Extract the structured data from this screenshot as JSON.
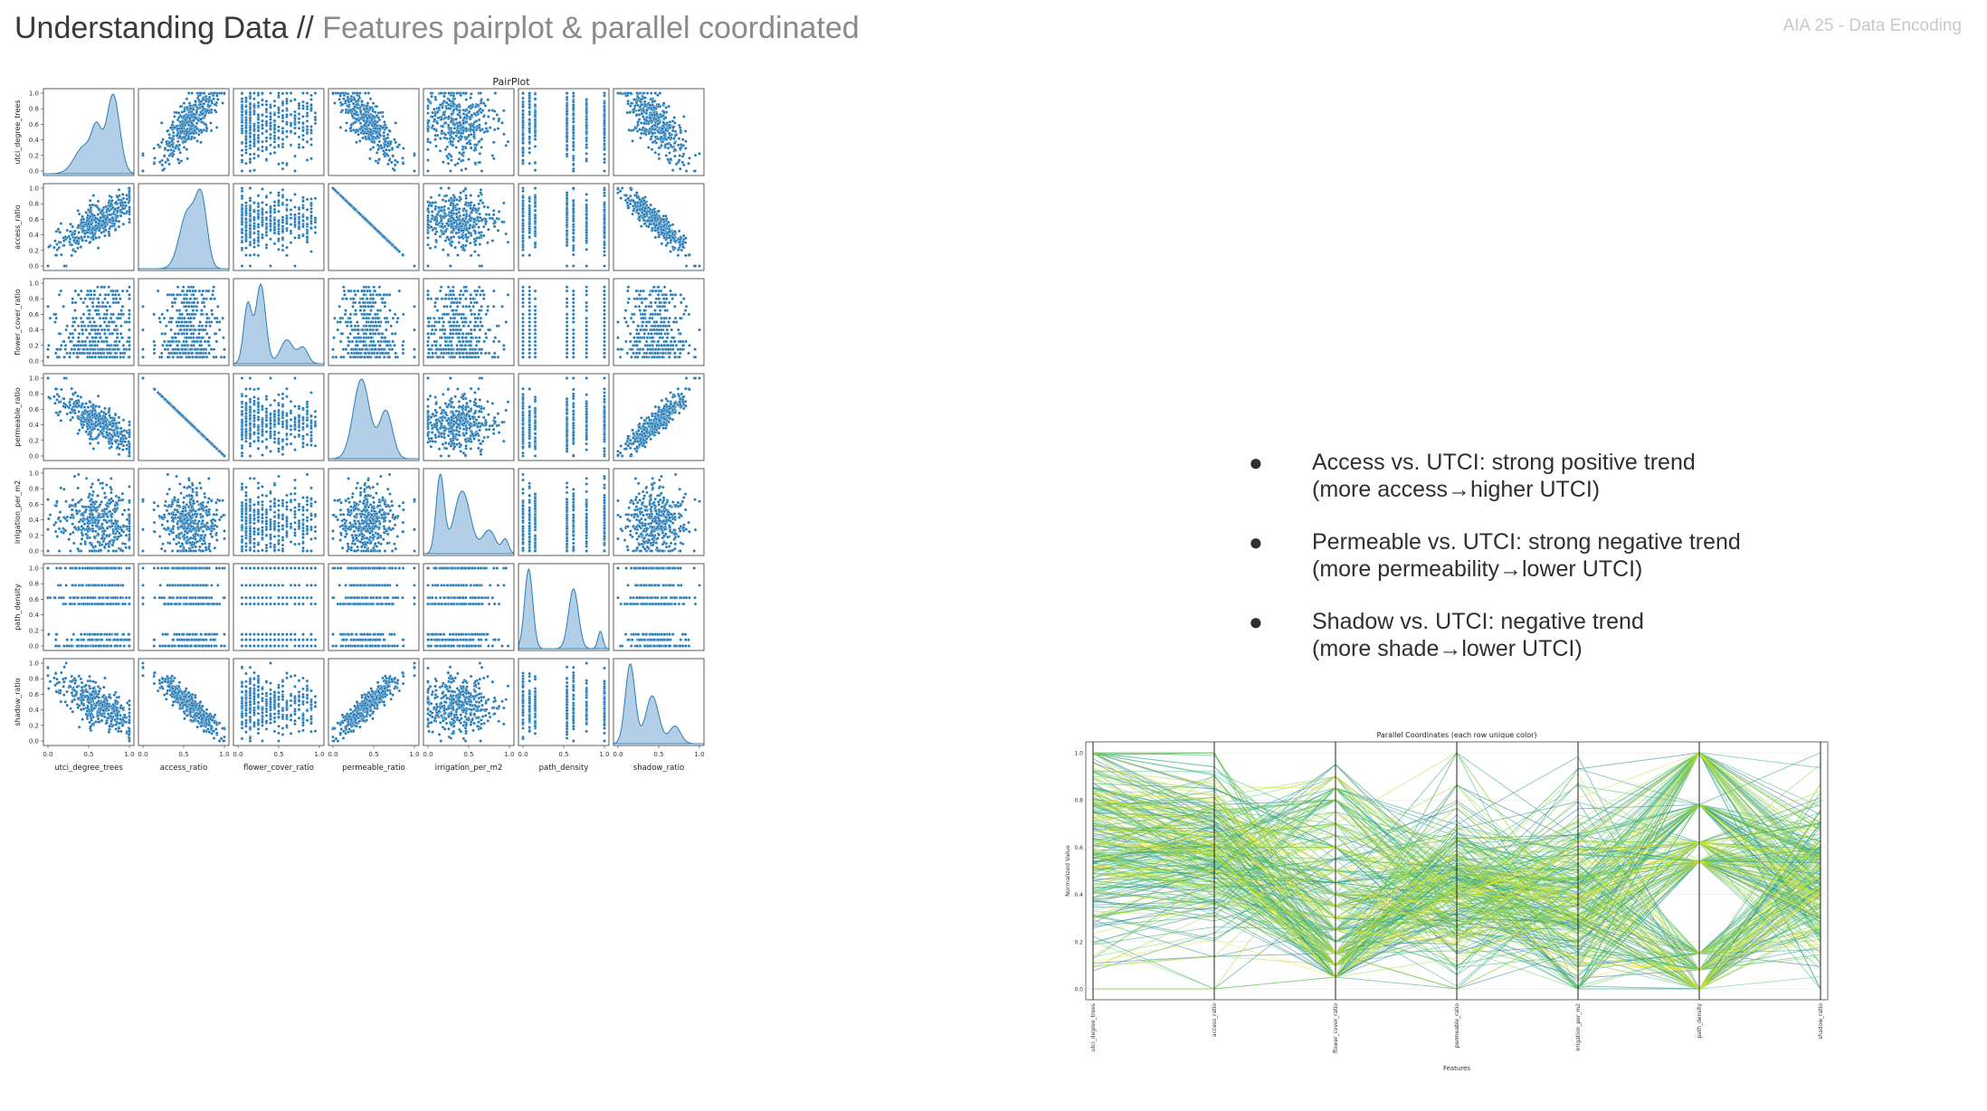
{
  "header": {
    "title_bold": "Understanding Data //",
    "title_light": "Features pairplot & parallel coordinated",
    "tag": "AIA 25 - Data Encoding"
  },
  "bullets": [
    {
      "line1": "Access vs. UTCI: strong positive trend",
      "line2": "(more access→higher UTCI)"
    },
    {
      "line1": "Permeable vs. UTCI: strong negative trend",
      "line2": "(more permeability→lower UTCI)"
    },
    {
      "line1": "Shadow vs. UTCI: negative trend",
      "line2": "(more shade→lower UTCI)"
    }
  ],
  "colors": {
    "scatter": "#1f77b4",
    "kde_fill": "#aecde6",
    "kde_line": "#1f77b4"
  },
  "chart_data": [
    {
      "type": "scatter",
      "title": "PairPlot",
      "variables": [
        "utci_degree_trees",
        "access_ratio",
        "flower_cover_ratio",
        "permeable_ratio",
        "irrigation_per_m2",
        "path_density",
        "shadow_ratio"
      ],
      "axis_range": [
        0.0,
        1.0
      ],
      "x_ticks": [
        "0.0",
        "0.5",
        "1.0"
      ],
      "y_ticks": [
        "0.0",
        "0.2",
        "0.4",
        "0.6",
        "0.8",
        "1.0"
      ],
      "diagonal": "kde",
      "path_density_levels": [
        0.0,
        0.08,
        0.15,
        0.54,
        0.62,
        0.78,
        1.0
      ],
      "correlations": [
        [
          1.0,
          0.7,
          0.0,
          -0.7,
          -0.1,
          0.0,
          -0.75
        ],
        [
          0.7,
          1.0,
          0.0,
          -1.0,
          -0.1,
          0.0,
          -0.85
        ],
        [
          0.0,
          0.0,
          1.0,
          0.0,
          0.0,
          0.0,
          0.0
        ],
        [
          -0.7,
          -1.0,
          0.0,
          1.0,
          0.1,
          0.0,
          0.85
        ],
        [
          -0.1,
          -0.1,
          0.0,
          0.1,
          1.0,
          0.0,
          0.45
        ],
        [
          0.0,
          0.0,
          0.0,
          0.0,
          0.0,
          1.0,
          0.0
        ],
        [
          -0.75,
          -0.85,
          0.0,
          0.85,
          0.45,
          0.0,
          1.0
        ]
      ],
      "kde_peaks": [
        [
          [
            0.45,
            0.12,
            0.35
          ],
          [
            0.8,
            0.08,
            1.0
          ],
          [
            0.6,
            0.06,
            0.45
          ]
        ],
        [
          [
            0.55,
            0.1,
            0.8
          ],
          [
            0.72,
            0.07,
            0.9
          ]
        ],
        [
          [
            0.12,
            0.05,
            0.75
          ],
          [
            0.28,
            0.06,
            1.0
          ],
          [
            0.6,
            0.08,
            0.3
          ],
          [
            0.8,
            0.06,
            0.2
          ]
        ],
        [
          [
            0.35,
            0.1,
            1.0
          ],
          [
            0.65,
            0.08,
            0.6
          ]
        ],
        [
          [
            0.15,
            0.05,
            1.0
          ],
          [
            0.42,
            0.1,
            0.8
          ],
          [
            0.75,
            0.08,
            0.3
          ],
          [
            0.95,
            0.04,
            0.18
          ]
        ],
        [
          [
            0.07,
            0.05,
            1.0
          ],
          [
            0.62,
            0.06,
            0.75
          ],
          [
            0.95,
            0.03,
            0.22
          ]
        ],
        [
          [
            0.15,
            0.06,
            1.0
          ],
          [
            0.42,
            0.08,
            0.6
          ],
          [
            0.7,
            0.07,
            0.22
          ]
        ]
      ]
    },
    {
      "type": "line",
      "title": "Parallel Coordinates (each row unique color)",
      "xlabel": "Features",
      "ylabel": "Normalized Value",
      "categories": [
        "utci_degree_trees",
        "access_ratio",
        "flower_cover_ratio",
        "permeable_ratio",
        "irrigation_per_m2",
        "path_density",
        "shadow_ratio"
      ],
      "ylim": [
        0.0,
        1.0
      ],
      "y_ticks": [
        "0.0",
        "0.2",
        "0.4",
        "0.6",
        "0.8",
        "1.0"
      ],
      "colormap": "viridis",
      "grid": true
    }
  ]
}
